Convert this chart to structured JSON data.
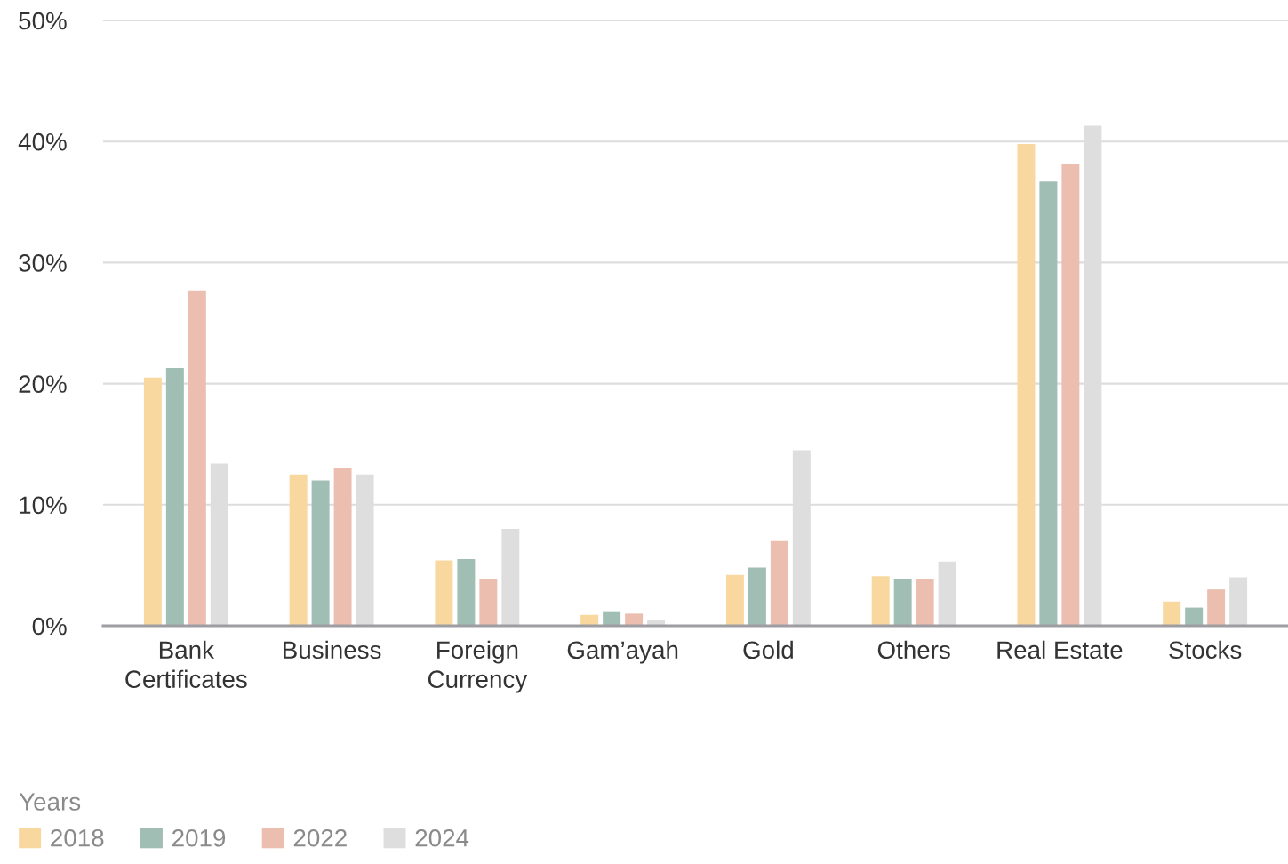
{
  "chart_data": {
    "type": "bar",
    "categories": [
      "Bank Certificates",
      "Business",
      "Foreign Currency",
      "Gam’ayah",
      "Gold",
      "Others",
      "Real Estate",
      "Stocks"
    ],
    "series": [
      {
        "name": "2018",
        "color": "#f8d89f",
        "values": [
          20.5,
          12.5,
          5.4,
          0.9,
          4.2,
          4.1,
          39.8,
          2.0
        ]
      },
      {
        "name": "2019",
        "color": "#a0beb4",
        "values": [
          21.3,
          12.0,
          5.5,
          1.2,
          4.8,
          3.9,
          36.7,
          1.5
        ]
      },
      {
        "name": "2022",
        "color": "#ecbeb0",
        "values": [
          27.7,
          13.0,
          3.9,
          1.0,
          7.0,
          3.9,
          38.1,
          3.0
        ]
      },
      {
        "name": "2024",
        "color": "#dedede",
        "values": [
          13.4,
          12.5,
          8.0,
          0.5,
          14.5,
          5.3,
          41.3,
          4.0
        ]
      }
    ],
    "legend_title": "Years",
    "legend": "bottom",
    "ylim": [
      0,
      50
    ],
    "yticks": [
      {
        "value": 0,
        "label": "0%"
      },
      {
        "value": 10,
        "label": "10%"
      },
      {
        "value": 20,
        "label": "20%"
      },
      {
        "value": 30,
        "label": "30%"
      },
      {
        "value": 40,
        "label": "40%"
      },
      {
        "value": 50,
        "label": "50%"
      }
    ],
    "grid": "y"
  }
}
